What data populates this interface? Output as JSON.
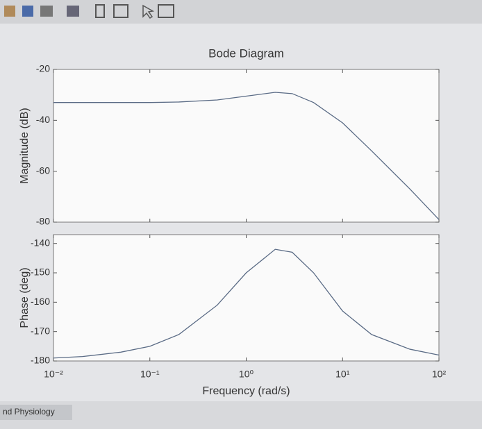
{
  "chart_data": [
    {
      "type": "line",
      "title": "Bode Diagram",
      "y_label": "Magnitude (dB)",
      "x": [
        0.01,
        0.02,
        0.05,
        0.1,
        0.2,
        0.5,
        1,
        2,
        3,
        5,
        10,
        20,
        50,
        100
      ],
      "series": [
        {
          "color": "#5a6b85",
          "values": [
            -33,
            -33,
            -33,
            -33,
            -32.8,
            -32,
            -30.5,
            -29,
            -29.5,
            -33,
            -41,
            -52,
            -67,
            -79
          ]
        }
      ],
      "xscale": "log",
      "xlim": [
        0.01,
        100
      ],
      "ylim": [
        -80,
        -20
      ],
      "yticks": [
        -80,
        -60,
        -40,
        -20
      ],
      "grid": false
    },
    {
      "type": "line",
      "x_label": "Frequency  (rad/s)",
      "y_label": "Phase (deg)",
      "x": [
        0.01,
        0.02,
        0.05,
        0.1,
        0.2,
        0.5,
        1,
        2,
        3,
        5,
        10,
        20,
        50,
        100
      ],
      "series": [
        {
          "color": "#5a6b85",
          "values": [
            -179,
            -178.5,
            -177,
            -175,
            -171,
            -161,
            -150,
            -142,
            -143,
            -150,
            -163,
            -171,
            -176,
            -178
          ]
        }
      ],
      "xscale": "log",
      "xlim": [
        0.01,
        100
      ],
      "ylim": [
        -180,
        -137
      ],
      "yticks": [
        -180,
        -170,
        -160,
        -150,
        -140
      ],
      "xticks": [
        {
          "value": 0.01,
          "label": "10⁻²"
        },
        {
          "value": 0.1,
          "label": "10⁻¹"
        },
        {
          "value": 1,
          "label": "10⁰"
        },
        {
          "value": 10,
          "label": "10¹"
        },
        {
          "value": 100,
          "label": "10²"
        }
      ],
      "grid": false
    }
  ],
  "ui": {
    "taskbar_text": "nd Physiology"
  }
}
